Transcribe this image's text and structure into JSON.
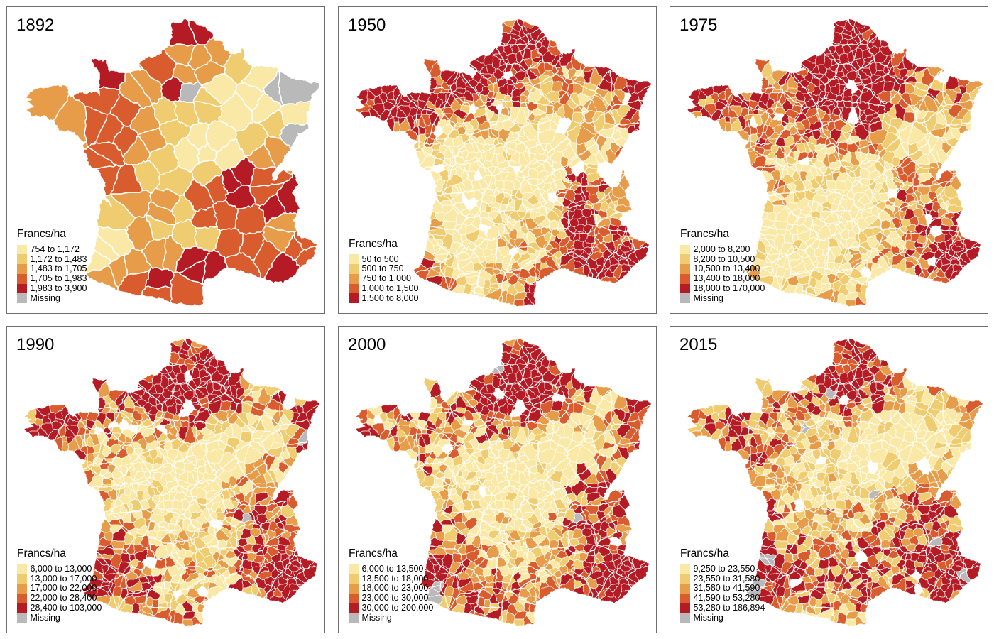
{
  "figure": {
    "background": "#ffffff",
    "panel_border_color": "#6e6e6e",
    "rows": 2,
    "cols": 3,
    "unit_label": "Francs/ha"
  },
  "palette": {
    "classes": [
      "#fae9a6",
      "#f0cc70",
      "#e69c49",
      "#d85c2d",
      "#b51b24"
    ],
    "missing": "#b9b9b9",
    "cell_border": "#ffffff"
  },
  "panels": [
    {
      "year": "1892",
      "legend_title": "Francs/ha",
      "entries": [
        {
          "label": "754 to 1,172",
          "color_index": 0
        },
        {
          "label": "1,172 to 1,483",
          "color_index": 1
        },
        {
          "label": "1,483 to 1,705",
          "color_index": 2
        },
        {
          "label": "1,705 to 1,983",
          "color_index": 3
        },
        {
          "label": "1,983 to 3,900",
          "color_index": 4
        },
        {
          "label": "Missing",
          "color_index": 5
        }
      ]
    },
    {
      "year": "1950",
      "legend_title": "Francs/ha",
      "entries": [
        {
          "label": "50 to 500",
          "color_index": 0
        },
        {
          "label": "500 to 750",
          "color_index": 1
        },
        {
          "label": "750 to 1,000",
          "color_index": 2
        },
        {
          "label": "1,000 to 1,500",
          "color_index": 3
        },
        {
          "label": "1,500 to 8,000",
          "color_index": 4
        }
      ]
    },
    {
      "year": "1975",
      "legend_title": "Francs/ha",
      "entries": [
        {
          "label": "2,000 to 8,200",
          "color_index": 0
        },
        {
          "label": "8,200 to 10,500",
          "color_index": 1
        },
        {
          "label": "10,500 to 13,400",
          "color_index": 2
        },
        {
          "label": "13,400 to 18,000",
          "color_index": 3
        },
        {
          "label": "18,000 to 170,000",
          "color_index": 4
        },
        {
          "label": "Missing",
          "color_index": 5
        }
      ]
    },
    {
      "year": "1990",
      "legend_title": "Francs/ha",
      "entries": [
        {
          "label": "6,000 to 13,000",
          "color_index": 0
        },
        {
          "label": "13,000 to 17,000",
          "color_index": 1
        },
        {
          "label": "17,000 to 22,000",
          "color_index": 2
        },
        {
          "label": "22,000 to 28,400",
          "color_index": 3
        },
        {
          "label": "28,400 to 103,000",
          "color_index": 4
        },
        {
          "label": "Missing",
          "color_index": 5
        }
      ]
    },
    {
      "year": "2000",
      "legend_title": "Francs/ha",
      "entries": [
        {
          "label": "6,000 to 13,500",
          "color_index": 0
        },
        {
          "label": "13,500 to 18,000",
          "color_index": 1
        },
        {
          "label": "18,000 to 23,000",
          "color_index": 2
        },
        {
          "label": "23,000 to 30,000",
          "color_index": 3
        },
        {
          "label": "30,000 to 200,000",
          "color_index": 4
        },
        {
          "label": "Missing",
          "color_index": 5
        }
      ]
    },
    {
      "year": "2015",
      "legend_title": "Francs/ha",
      "entries": [
        {
          "label": "9,250 to 23,550",
          "color_index": 0
        },
        {
          "label": "23,550 to 31,580",
          "color_index": 1
        },
        {
          "label": "31,580 to 41,590",
          "color_index": 2
        },
        {
          "label": "41,590 to 53,280",
          "color_index": 3
        },
        {
          "label": "53,280 to 186,894",
          "color_index": 4
        },
        {
          "label": "Missing",
          "color_index": 5
        }
      ]
    }
  ],
  "chart_data": {
    "type": "choropleth_map_grid",
    "region": "France",
    "unit": "Francs/ha",
    "maps": [
      {
        "year": "1892",
        "classes": [
          "754 to 1,172",
          "1,172 to 1,483",
          "1,483 to 1,705",
          "1,705 to 1,983",
          "1,983 to 3,900"
        ],
        "has_missing_class": true
      },
      {
        "year": "1950",
        "classes": [
          "50 to 500",
          "500 to 750",
          "750 to 1,000",
          "1,000 to 1,500",
          "1,500 to 8,000"
        ],
        "has_missing_class": false
      },
      {
        "year": "1975",
        "classes": [
          "2,000 to 8,200",
          "8,200 to 10,500",
          "10,500 to 13,400",
          "13,400 to 18,000",
          "18,000 to 170,000"
        ],
        "has_missing_class": true
      },
      {
        "year": "1990",
        "classes": [
          "6,000 to 13,000",
          "13,000 to 17,000",
          "17,000 to 22,000",
          "22,000 to 28,400",
          "28,400 to 103,000"
        ],
        "has_missing_class": true
      },
      {
        "year": "2000",
        "classes": [
          "6,000 to 13,500",
          "13,500 to 18,000",
          "18,000 to 23,000",
          "23,000 to 30,000",
          "30,000 to 200,000"
        ],
        "has_missing_class": true
      },
      {
        "year": "2015",
        "classes": [
          "9,250 to 23,550",
          "23,550 to 31,580",
          "31,580 to 41,590",
          "41,590 to 53,280",
          "53,280 to 186,894"
        ],
        "has_missing_class": true
      }
    ]
  }
}
